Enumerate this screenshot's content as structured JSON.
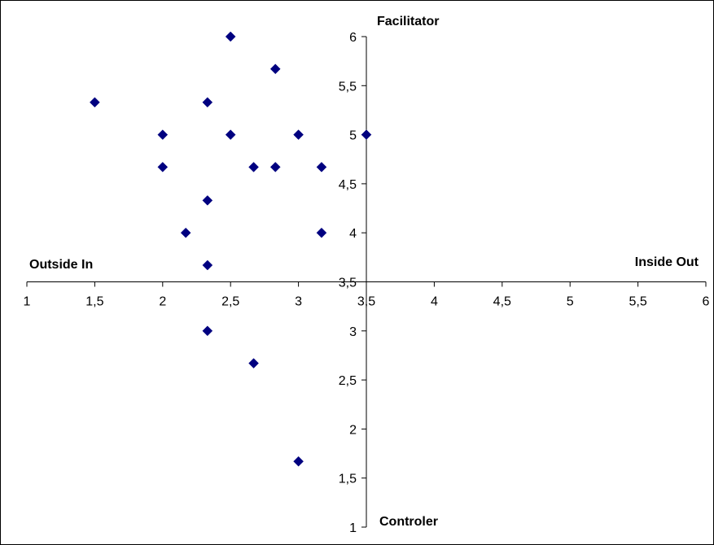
{
  "chart_data": {
    "type": "scatter",
    "title": "",
    "quadrant_labels": {
      "top": "Facilitator",
      "bottom": "Controler",
      "left": "Outside In",
      "right": "Inside Out"
    },
    "xlim": [
      1,
      6
    ],
    "ylim": [
      1,
      6
    ],
    "axis_crossing": {
      "x": 3.5,
      "y": 3.5
    },
    "x_ticks": [
      1,
      1.5,
      2,
      2.5,
      3,
      3.5,
      4,
      4.5,
      5,
      5.5,
      6
    ],
    "x_tick_labels": [
      "1",
      "1,5",
      "2",
      "2,5",
      "3",
      "3,5",
      "4",
      "4,5",
      "5",
      "5,5",
      "6"
    ],
    "y_ticks": [
      1,
      1.5,
      2,
      2.5,
      3,
      3.5,
      4,
      4.5,
      5,
      5.5,
      6
    ],
    "y_tick_labels": [
      "1",
      "1,5",
      "2",
      "2,5",
      "3",
      "3,5",
      "4",
      "4,5",
      "5",
      "5,5",
      "6"
    ],
    "grid": false,
    "legend": "none",
    "marker": "diamond",
    "marker_color": "#000080",
    "series": [
      {
        "points": [
          {
            "x": 2.5,
            "y": 6.0
          },
          {
            "x": 2.83,
            "y": 5.67
          },
          {
            "x": 1.5,
            "y": 5.33
          },
          {
            "x": 2.33,
            "y": 5.33
          },
          {
            "x": 2.0,
            "y": 5.0
          },
          {
            "x": 2.5,
            "y": 5.0
          },
          {
            "x": 3.0,
            "y": 5.0
          },
          {
            "x": 3.5,
            "y": 5.0
          },
          {
            "x": 2.0,
            "y": 4.67
          },
          {
            "x": 2.67,
            "y": 4.67
          },
          {
            "x": 2.83,
            "y": 4.67
          },
          {
            "x": 3.17,
            "y": 4.67
          },
          {
            "x": 2.33,
            "y": 4.33
          },
          {
            "x": 2.17,
            "y": 4.0
          },
          {
            "x": 3.17,
            "y": 4.0
          },
          {
            "x": 2.33,
            "y": 3.67
          },
          {
            "x": 2.33,
            "y": 3.0
          },
          {
            "x": 2.67,
            "y": 2.67
          },
          {
            "x": 3.0,
            "y": 1.67
          }
        ]
      }
    ]
  }
}
